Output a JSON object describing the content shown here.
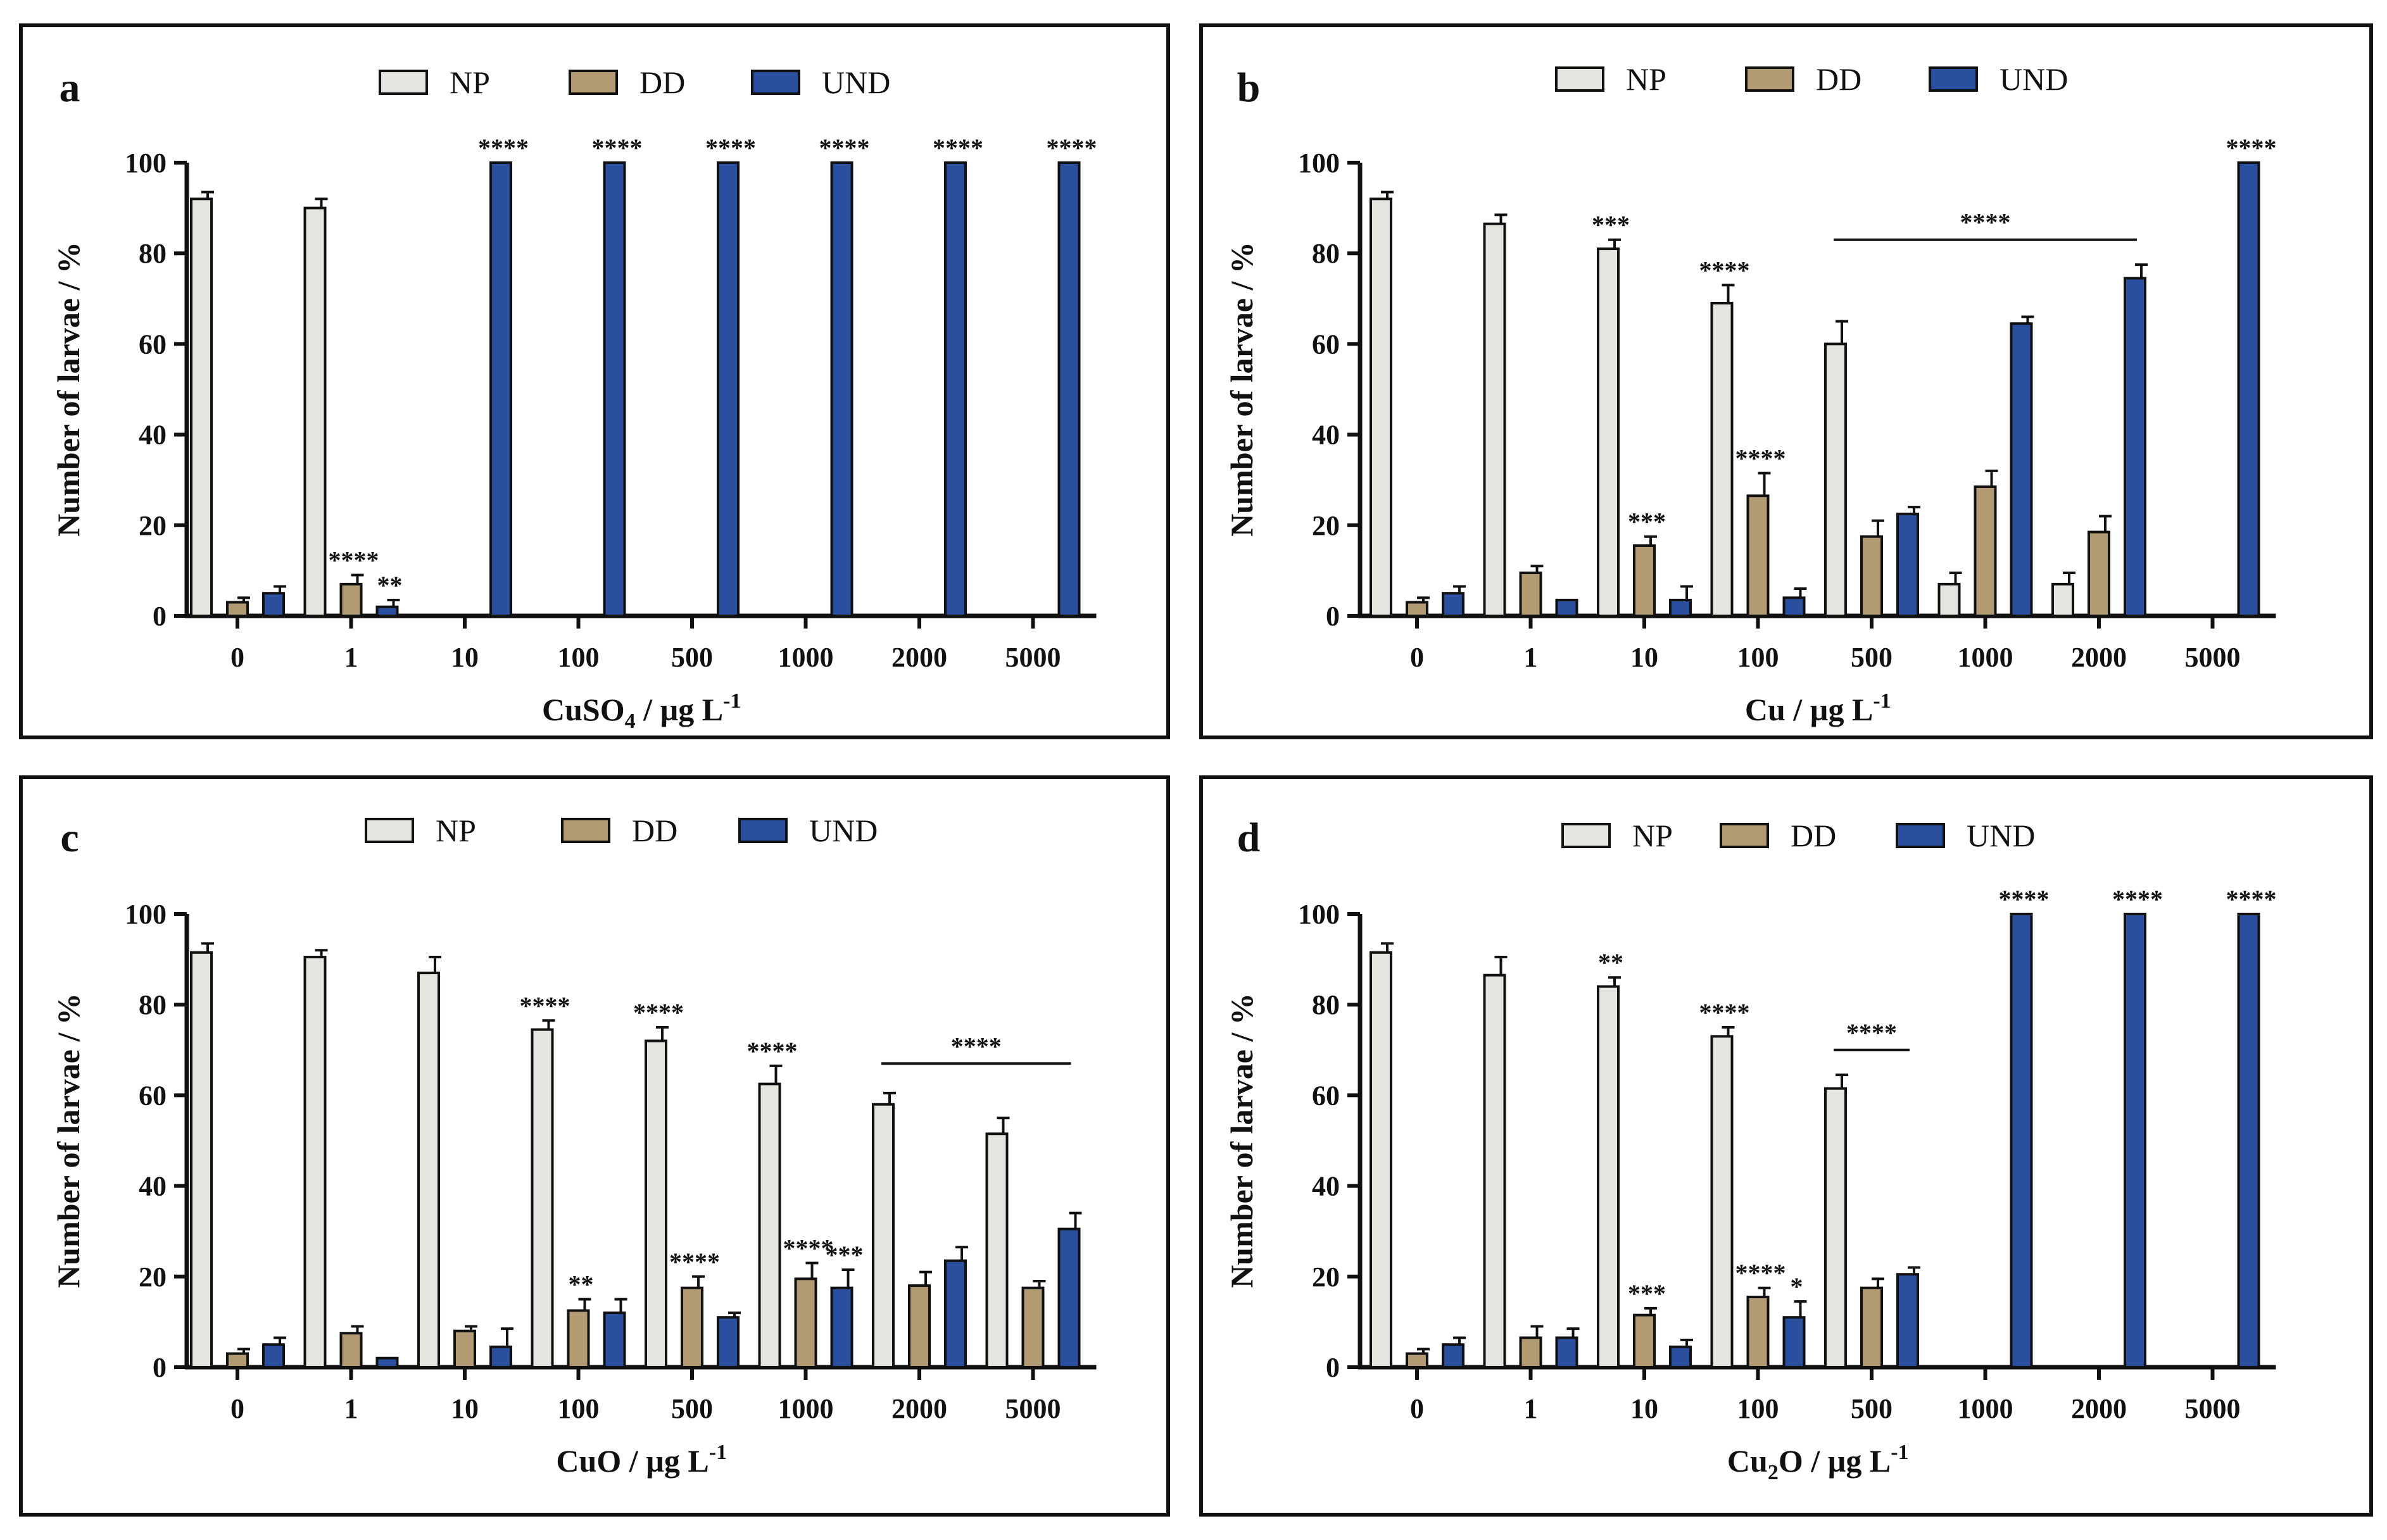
{
  "figure": {
    "legend": [
      {
        "key": "NP",
        "label": "NP",
        "color": "#e6e4de"
      },
      {
        "key": "DD",
        "label": "DD",
        "color": "#b29a73"
      },
      {
        "key": "UND",
        "label": "UND",
        "color": "#2a4f9f"
      }
    ],
    "ylabel": "Number of larvae / %",
    "yticks": [
      0,
      20,
      40,
      60,
      80,
      100
    ]
  },
  "chart_data": [
    {
      "panel": "a",
      "type": "bar",
      "xlabel_main": "CuSO",
      "xlabel_sub": "4",
      "xlabel_rest": " / µg L",
      "xlabel_sup": "-1",
      "ylabel": "Number of larvae / %",
      "ylim": [
        0,
        100
      ],
      "categories": [
        "0",
        "1",
        "10",
        "100",
        "500",
        "1000",
        "2000",
        "5000"
      ],
      "series": [
        {
          "name": "NP",
          "values": [
            92,
            90,
            0,
            0,
            0,
            0,
            0,
            0
          ],
          "errors": [
            1.5,
            2,
            0,
            0,
            0,
            0,
            0,
            0
          ]
        },
        {
          "name": "DD",
          "values": [
            3,
            7,
            0,
            0,
            0,
            0,
            0,
            0
          ],
          "errors": [
            1,
            2,
            0,
            0,
            0,
            0,
            0,
            0
          ]
        },
        {
          "name": "UND",
          "values": [
            5,
            2,
            100,
            100,
            100,
            100,
            100,
            100
          ],
          "errors": [
            1.5,
            1.5,
            0,
            0,
            0,
            0,
            0,
            0
          ]
        }
      ],
      "significance": [
        {
          "category": 1,
          "series": "DD",
          "label": "****"
        },
        {
          "category": 1,
          "series": "UND",
          "label": "**"
        },
        {
          "category": 2,
          "series": "UND",
          "label": "****"
        },
        {
          "category": 3,
          "series": "UND",
          "label": "****"
        },
        {
          "category": 4,
          "series": "UND",
          "label": "****"
        },
        {
          "category": 5,
          "series": "UND",
          "label": "****"
        },
        {
          "category": 6,
          "series": "UND",
          "label": "****"
        },
        {
          "category": 7,
          "series": "UND",
          "label": "****"
        }
      ],
      "brackets": []
    },
    {
      "panel": "b",
      "type": "bar",
      "xlabel_main": "Cu / µg L",
      "xlabel_sub": "",
      "xlabel_rest": "",
      "xlabel_sup": "-1",
      "ylabel": "Number of larvae / %",
      "ylim": [
        0,
        100
      ],
      "categories": [
        "0",
        "1",
        "10",
        "100",
        "500",
        "1000",
        "2000",
        "5000"
      ],
      "series": [
        {
          "name": "NP",
          "values": [
            92,
            86.5,
            81,
            69,
            60,
            7,
            7,
            0
          ],
          "errors": [
            1.5,
            2,
            2,
            4,
            5,
            2.5,
            2.5,
            0
          ]
        },
        {
          "name": "DD",
          "values": [
            3,
            9.5,
            15.5,
            26.5,
            17.5,
            28.5,
            18.5,
            0
          ],
          "errors": [
            1,
            1.5,
            2,
            5,
            3.5,
            3.5,
            3.5,
            0
          ]
        },
        {
          "name": "UND",
          "values": [
            5,
            3.5,
            3.5,
            4,
            22.5,
            64.5,
            74.5,
            100
          ],
          "errors": [
            1.5,
            0,
            3,
            2,
            1.5,
            1.5,
            3,
            0
          ]
        }
      ],
      "significance": [
        {
          "category": 2,
          "series": "NP",
          "label": "***"
        },
        {
          "category": 2,
          "series": "DD",
          "label": "***"
        },
        {
          "category": 3,
          "series": "NP",
          "label": "****"
        },
        {
          "category": 3,
          "series": "DD",
          "label": "****"
        },
        {
          "category": 7,
          "series": "UND",
          "label": "****"
        }
      ],
      "brackets": [
        {
          "from": 4,
          "to": 6,
          "value": 83,
          "label": "****"
        }
      ]
    },
    {
      "panel": "c",
      "type": "bar",
      "xlabel_main": "CuO / µg L",
      "xlabel_sub": "",
      "xlabel_rest": "",
      "xlabel_sup": "-1",
      "ylabel": "Number of larvae / %",
      "ylim": [
        0,
        100
      ],
      "categories": [
        "0",
        "1",
        "10",
        "100",
        "500",
        "1000",
        "2000",
        "5000"
      ],
      "series": [
        {
          "name": "NP",
          "values": [
            91.5,
            90.5,
            87,
            74.5,
            72,
            62.5,
            58,
            51.5
          ],
          "errors": [
            2,
            1.5,
            3.5,
            2,
            3,
            4,
            2.5,
            3.5
          ]
        },
        {
          "name": "DD",
          "values": [
            3,
            7.5,
            8,
            12.5,
            17.5,
            19.5,
            18,
            17.5
          ],
          "errors": [
            1,
            1.5,
            1,
            2.5,
            2.5,
            3.5,
            3,
            1.5
          ]
        },
        {
          "name": "UND",
          "values": [
            5,
            2,
            4.5,
            12,
            11,
            17.5,
            23.5,
            30.5
          ],
          "errors": [
            1.5,
            0,
            4,
            3,
            1,
            4,
            3,
            3.5
          ]
        }
      ],
      "significance": [
        {
          "category": 3,
          "series": "NP",
          "label": "****"
        },
        {
          "category": 3,
          "series": "DD",
          "label": "**"
        },
        {
          "category": 4,
          "series": "NP",
          "label": "****"
        },
        {
          "category": 4,
          "series": "DD",
          "label": "****"
        },
        {
          "category": 5,
          "series": "NP",
          "label": "****"
        },
        {
          "category": 5,
          "series": "DD",
          "label": "****"
        },
        {
          "category": 5,
          "series": "UND",
          "label": "***"
        }
      ],
      "brackets": [
        {
          "from": 6,
          "to": 7,
          "value": 67,
          "label": "****"
        }
      ]
    },
    {
      "panel": "d",
      "type": "bar",
      "xlabel_main": "Cu",
      "xlabel_sub": "2",
      "xlabel_rest": "O / µg L",
      "xlabel_sup": "-1",
      "ylabel": "Number of larvae / %",
      "ylim": [
        0,
        100
      ],
      "categories": [
        "0",
        "1",
        "10",
        "100",
        "500",
        "1000",
        "2000",
        "5000"
      ],
      "series": [
        {
          "name": "NP",
          "values": [
            91.5,
            86.5,
            84,
            73,
            61.5,
            0,
            0,
            0
          ],
          "errors": [
            2,
            4,
            2,
            2,
            3,
            0,
            0,
            0
          ]
        },
        {
          "name": "DD",
          "values": [
            3,
            6.5,
            11.5,
            15.5,
            17.5,
            0,
            0,
            0
          ],
          "errors": [
            1,
            2.5,
            1.5,
            2,
            2,
            0,
            0,
            0
          ]
        },
        {
          "name": "UND",
          "values": [
            5,
            6.5,
            4.5,
            11,
            20.5,
            100,
            100,
            100
          ],
          "errors": [
            1.5,
            2,
            1.5,
            3.5,
            1.5,
            0,
            0,
            0
          ]
        }
      ],
      "significance": [
        {
          "category": 2,
          "series": "NP",
          "label": "**"
        },
        {
          "category": 2,
          "series": "DD",
          "label": "***"
        },
        {
          "category": 3,
          "series": "NP",
          "label": "****"
        },
        {
          "category": 3,
          "series": "DD",
          "label": "****"
        },
        {
          "category": 3,
          "series": "UND",
          "label": "*"
        },
        {
          "category": 5,
          "series": "UND",
          "label": "****"
        },
        {
          "category": 6,
          "series": "UND",
          "label": "****"
        },
        {
          "category": 7,
          "series": "UND",
          "label": "****"
        }
      ],
      "brackets": [
        {
          "from": 4,
          "to": 4,
          "value": 70,
          "label": "****"
        }
      ]
    }
  ]
}
